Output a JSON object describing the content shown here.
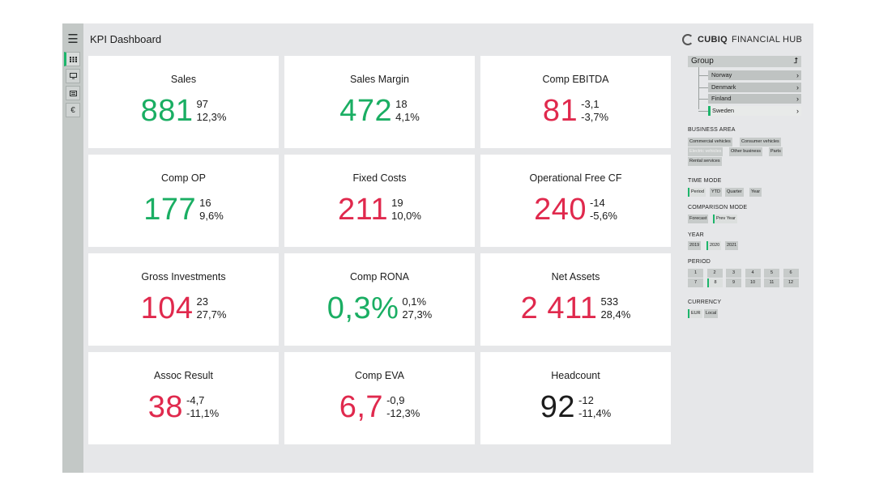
{
  "header": {
    "title": "KPI Dashboard",
    "brand_bold": "CUBIQ",
    "brand_rest": "FINANCIAL HUB"
  },
  "rail": {
    "menu_icon": "hamburger-icon",
    "items": [
      "grid-icon",
      "monitor-icon",
      "list-icon",
      "currency-icon"
    ],
    "currency_glyph": "€"
  },
  "kpis": [
    {
      "label": "Sales",
      "value": "881",
      "delta_abs": "97",
      "delta_pct": "12,3%",
      "status": "green"
    },
    {
      "label": "Sales Margin",
      "value": "472",
      "delta_abs": "18",
      "delta_pct": "4,1%",
      "status": "green"
    },
    {
      "label": "Comp EBITDA",
      "value": "81",
      "delta_abs": "-3,1",
      "delta_pct": "-3,7%",
      "status": "red"
    },
    {
      "label": "Comp OP",
      "value": "177",
      "delta_abs": "16",
      "delta_pct": "9,6%",
      "status": "green"
    },
    {
      "label": "Fixed Costs",
      "value": "211",
      "delta_abs": "19",
      "delta_pct": "10,0%",
      "status": "red"
    },
    {
      "label": "Operational Free CF",
      "value": "240",
      "delta_abs": "-14",
      "delta_pct": "-5,6%",
      "status": "red"
    },
    {
      "label": "Gross Investments",
      "value": "104",
      "delta_abs": "23",
      "delta_pct": "27,7%",
      "status": "red"
    },
    {
      "label": "Comp RONA",
      "value": "0,3%",
      "delta_abs": "0,1%",
      "delta_pct": "27,3%",
      "status": "green"
    },
    {
      "label": "Net Assets",
      "value": "2 411",
      "delta_abs": "533",
      "delta_pct": "28,4%",
      "status": "red"
    },
    {
      "label": "Assoc Result",
      "value": "38",
      "delta_abs": "-4,7",
      "delta_pct": "-11,1%",
      "status": "red"
    },
    {
      "label": "Comp EVA",
      "value": "6,7",
      "delta_abs": "-0,9",
      "delta_pct": "-12,3%",
      "status": "red"
    },
    {
      "label": "Headcount",
      "value": "92",
      "delta_abs": "-12",
      "delta_pct": "-11,4%",
      "status": "dark"
    }
  ],
  "colors": {
    "green": "#1aae63",
    "red": "#e0294d",
    "dark": "#1c1c1c",
    "accent": "#1db56b"
  },
  "filters": {
    "group": {
      "label": "Group",
      "arrow": "⮥",
      "countries": [
        "Norway",
        "Denmark",
        "Finland",
        "Sweden"
      ],
      "selected_country": "Sweden"
    },
    "business_area": {
      "title": "BUSINESS AREA",
      "options": [
        "Commercial vehicles",
        "Consumer vehicles",
        "Electric vehicles",
        "Other business",
        "Parts",
        "Rental services"
      ],
      "dimmed": "Electric vehicles"
    },
    "time_mode": {
      "title": "TIME MODE",
      "options": [
        "Period",
        "YTD",
        "Quarter",
        "Year"
      ],
      "selected": "Period"
    },
    "comparison_mode": {
      "title": "COMPARISON MODE",
      "options": [
        "Forecast",
        "Prev Year"
      ],
      "selected": "Prev Year"
    },
    "year": {
      "title": "YEAR",
      "options": [
        "2019",
        "2020",
        "2021"
      ],
      "selected": "2020"
    },
    "period": {
      "title": "PERIOD",
      "options": [
        "1",
        "2",
        "3",
        "4",
        "5",
        "6",
        "7",
        "8",
        "9",
        "10",
        "11",
        "12"
      ],
      "selected": "8"
    },
    "currency": {
      "title": "CURRENCY",
      "options": [
        "EUR",
        "Local"
      ],
      "selected": "EUR"
    }
  }
}
